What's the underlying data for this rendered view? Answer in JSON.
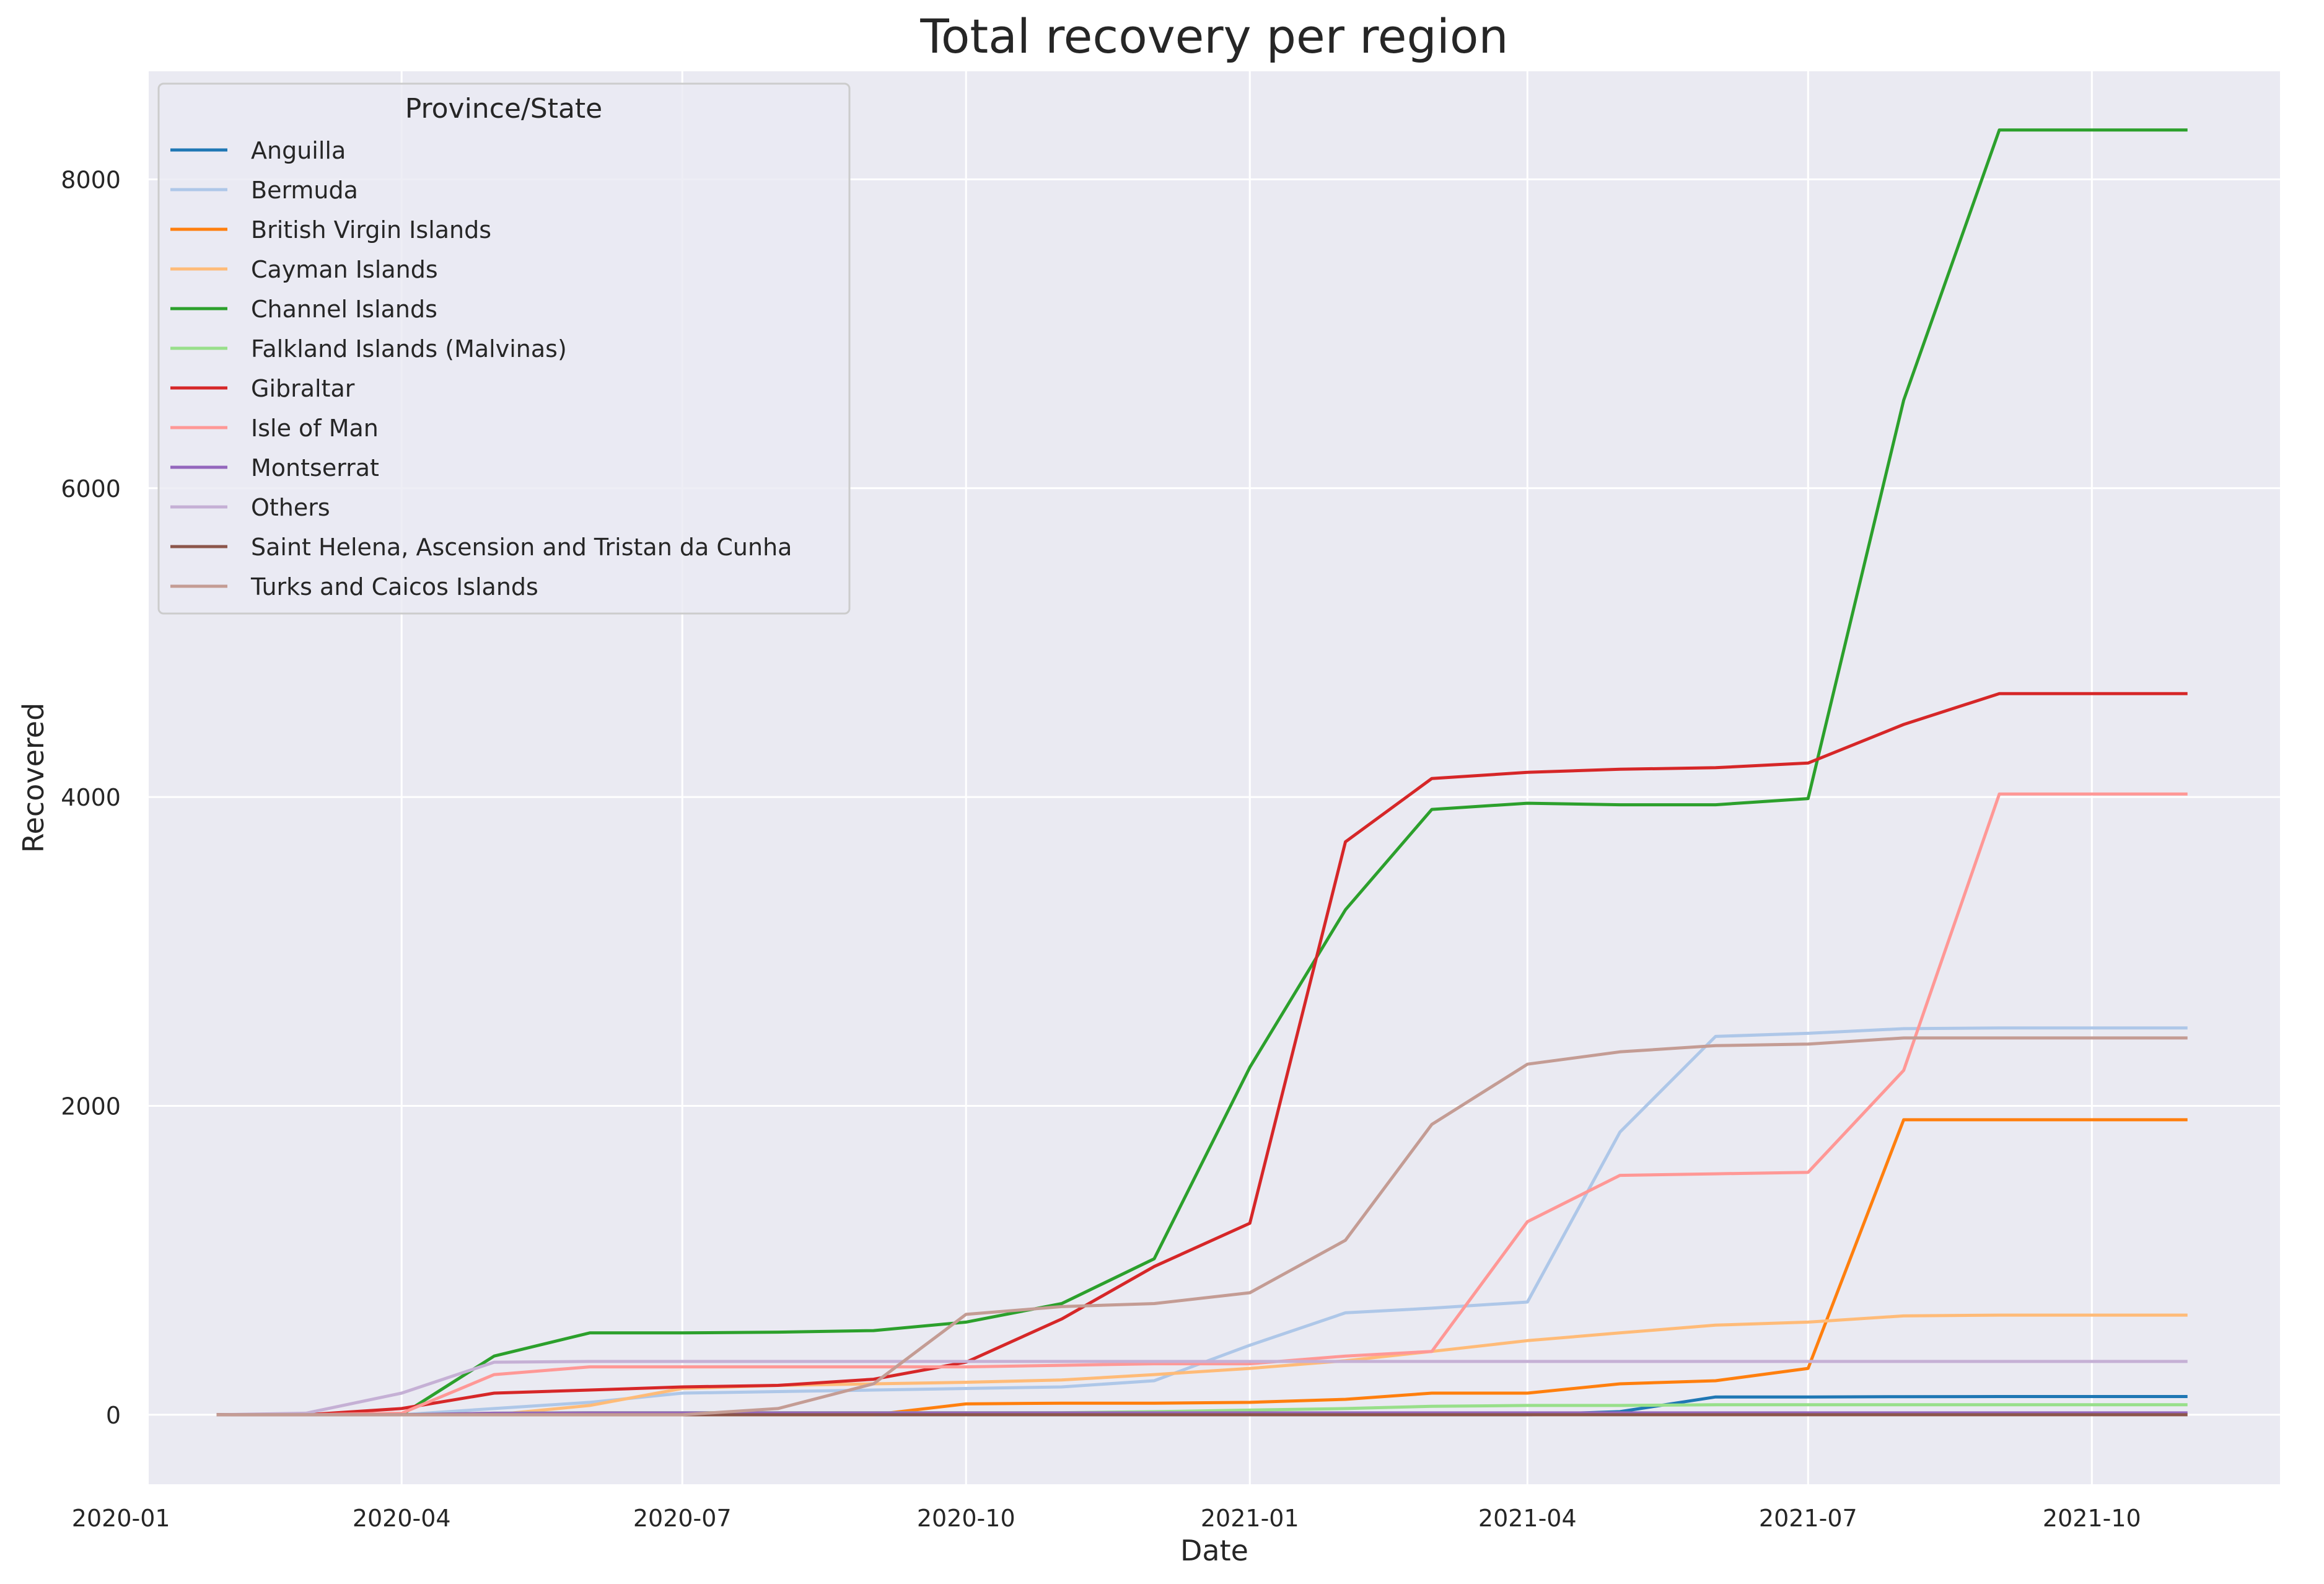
{
  "chart_data": {
    "type": "line",
    "title": "Total recovery per region",
    "xlabel": "Date",
    "ylabel": "Recovered",
    "grid": true,
    "legend_title": "Province/State",
    "legend_position": "top-left",
    "x_ticks": [
      "2020-01",
      "2020-04",
      "2020-07",
      "2020-10",
      "2021-01",
      "2021-04",
      "2021-07",
      "2021-10"
    ],
    "y_ticks": [
      0,
      2000,
      4000,
      6000,
      8000
    ],
    "ylim": [
      -450,
      8700
    ],
    "xlim": [
      "2020-01-10",
      "2021-12-01"
    ],
    "x": [
      "2020-02-01",
      "2020-03-01",
      "2020-04-01",
      "2020-05-01",
      "2020-06-01",
      "2020-07-01",
      "2020-08-01",
      "2020-09-01",
      "2020-10-01",
      "2020-11-01",
      "2020-12-01",
      "2021-01-01",
      "2021-02-01",
      "2021-03-01",
      "2021-04-01",
      "2021-05-01",
      "2021-06-01",
      "2021-07-01",
      "2021-08-01",
      "2021-09-01",
      "2021-10-01",
      "2021-11-01"
    ],
    "series": [
      {
        "name": "Anguilla",
        "color": "#1f77b4",
        "values": [
          0,
          0,
          0,
          0,
          0,
          0,
          0,
          0,
          0,
          0,
          0,
          0,
          0,
          0,
          0,
          20,
          115,
          115,
          117,
          118,
          118,
          118
        ]
      },
      {
        "name": "Bermuda",
        "color": "#aec7e8",
        "values": [
          0,
          0,
          0,
          40,
          80,
          140,
          150,
          160,
          170,
          180,
          220,
          450,
          660,
          690,
          730,
          1830,
          2450,
          2470,
          2500,
          2505,
          2505,
          2505
        ]
      },
      {
        "name": "British Virgin Islands",
        "color": "#ff7f0e",
        "values": [
          0,
          0,
          0,
          0,
          0,
          0,
          0,
          0,
          70,
          75,
          75,
          80,
          100,
          140,
          140,
          200,
          220,
          300,
          1910,
          1910,
          1910,
          1910
        ]
      },
      {
        "name": "Cayman Islands",
        "color": "#ffbb78",
        "values": [
          0,
          0,
          0,
          0,
          60,
          170,
          190,
          200,
          210,
          225,
          260,
          300,
          350,
          410,
          480,
          530,
          580,
          600,
          640,
          645,
          645,
          645
        ]
      },
      {
        "name": "Channel Islands",
        "color": "#2ca02c",
        "values": [
          0,
          0,
          0,
          380,
          530,
          530,
          535,
          545,
          600,
          720,
          1010,
          2250,
          3270,
          3920,
          3960,
          3950,
          3950,
          3990,
          6570,
          8320,
          8320,
          8320
        ]
      },
      {
        "name": "Falkland Islands (Malvinas)",
        "color": "#98df8a",
        "values": [
          0,
          0,
          0,
          10,
          13,
          13,
          13,
          13,
          13,
          13,
          20,
          30,
          40,
          55,
          60,
          60,
          65,
          65,
          65,
          65,
          65,
          65
        ]
      },
      {
        "name": "Gibraltar",
        "color": "#d62728",
        "values": [
          0,
          0,
          40,
          140,
          160,
          180,
          190,
          230,
          340,
          620,
          960,
          1240,
          3710,
          4120,
          4160,
          4180,
          4190,
          4220,
          4470,
          4670,
          4670,
          4670
        ]
      },
      {
        "name": "Isle of Man",
        "color": "#ff9896",
        "values": [
          0,
          0,
          10,
          260,
          310,
          310,
          310,
          310,
          310,
          320,
          330,
          330,
          380,
          410,
          1250,
          1550,
          1560,
          1570,
          2230,
          4020,
          4020,
          4020
        ]
      },
      {
        "name": "Montserrat",
        "color": "#9467bd",
        "values": [
          0,
          0,
          0,
          10,
          12,
          12,
          12,
          12,
          12,
          12,
          12,
          12,
          12,
          12,
          12,
          12,
          12,
          12,
          12,
          12,
          12,
          12
        ]
      },
      {
        "name": "Others",
        "color": "#c5b0d5",
        "values": [
          0,
          10,
          140,
          340,
          345,
          345,
          345,
          345,
          345,
          345,
          345,
          345,
          345,
          345,
          345,
          345,
          345,
          345,
          345,
          345,
          345,
          345
        ]
      },
      {
        "name": "Saint Helena, Ascension and Tristan da Cunha",
        "color": "#8c564b",
        "values": [
          0,
          0,
          0,
          0,
          0,
          0,
          0,
          0,
          0,
          0,
          0,
          0,
          0,
          0,
          0,
          0,
          0,
          0,
          0,
          0,
          0,
          0
        ]
      },
      {
        "name": "Turks and Caicos Islands",
        "color": "#c49c94",
        "values": [
          0,
          0,
          0,
          0,
          0,
          0,
          40,
          200,
          650,
          700,
          720,
          790,
          1130,
          1880,
          2270,
          2350,
          2390,
          2400,
          2440,
          2440,
          2440,
          2440
        ]
      }
    ]
  }
}
